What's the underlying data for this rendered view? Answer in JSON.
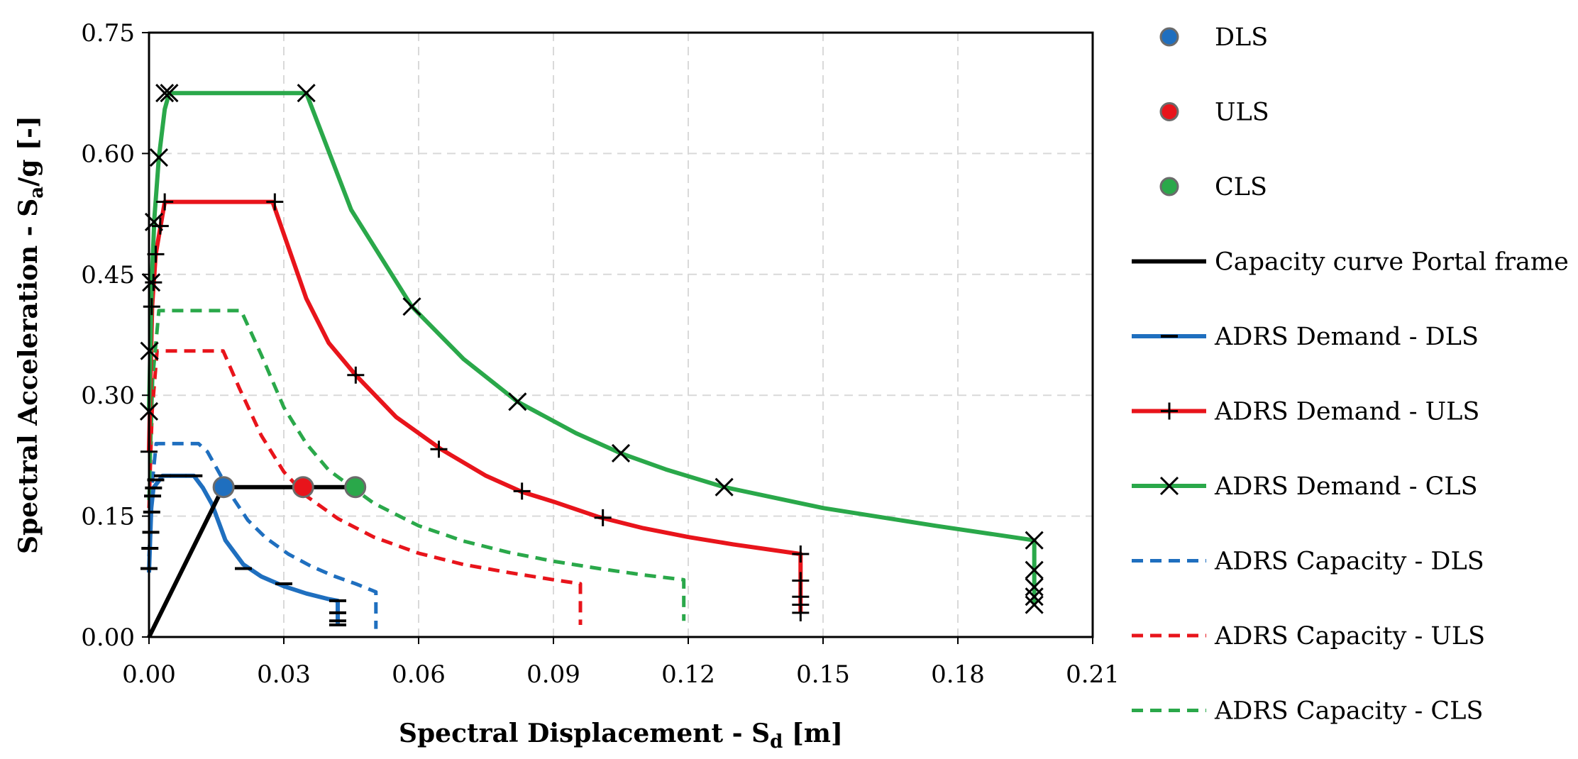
{
  "chart_data": {
    "type": "line",
    "xlabel": {
      "main": "Spectral Displacement - S",
      "sub": "d",
      "unit": " [m]"
    },
    "ylabel": {
      "main": "Spectral Acceleration - S",
      "sub": "a",
      "unit": "/g [-]"
    },
    "xlim": [
      0,
      0.21
    ],
    "ylim": [
      0,
      0.75
    ],
    "xticks": [
      0,
      0.03,
      0.06,
      0.09,
      0.12,
      0.15,
      0.18,
      0.21
    ],
    "yticks": [
      0,
      0.15,
      0.3,
      0.45,
      0.6,
      0.75
    ],
    "xtick_labels": [
      "0.00",
      "0.03",
      "0.06",
      "0.09",
      "0.12",
      "0.15",
      "0.18",
      "0.21"
    ],
    "ytick_labels": [
      "0.00",
      "0.15",
      "0.30",
      "0.45",
      "0.60",
      "0.75"
    ],
    "grid": true,
    "legend_position": "right",
    "legend": [
      {
        "label": "DLS",
        "kind": "dot",
        "color": "#1f6fbf"
      },
      {
        "label": "ULS",
        "kind": "dot",
        "color": "#e8141b"
      },
      {
        "label": "CLS",
        "kind": "dot",
        "color": "#2aa84a"
      },
      {
        "label": "Capacity curve Portal frame",
        "kind": "line",
        "color": "#000000"
      },
      {
        "label": "ADRS Demand - DLS",
        "kind": "line",
        "color": "#1f6fbf",
        "marker": "dash"
      },
      {
        "label": "ADRS Demand - ULS",
        "kind": "line",
        "color": "#e8141b",
        "marker": "plus"
      },
      {
        "label": "ADRS Demand - CLS",
        "kind": "line",
        "color": "#2aa84a",
        "marker": "x"
      },
      {
        "label": "ADRS Capacity - DLS",
        "kind": "dashed",
        "color": "#1f6fbf"
      },
      {
        "label": "ADRS Capacity - ULS",
        "kind": "dashed",
        "color": "#e8141b"
      },
      {
        "label": "ADRS Capacity - CLS",
        "kind": "dashed",
        "color": "#2aa84a"
      }
    ],
    "series": [
      {
        "name": "ADRS Capacity - DLS",
        "style": "dashed",
        "color": "#1f6fbf",
        "x": [
          0,
          0.0007,
          0.0016,
          0.011,
          0.013,
          0.016,
          0.019,
          0.022,
          0.026,
          0.031,
          0.036,
          0.041,
          0.046,
          0.0505,
          0.0505
        ],
        "y": [
          0.1,
          0.19,
          0.24,
          0.24,
          0.23,
          0.2,
          0.17,
          0.145,
          0.123,
          0.103,
          0.088,
          0.076,
          0.066,
          0.056,
          0.01
        ]
      },
      {
        "name": "ADRS Capacity - ULS",
        "style": "dashed",
        "color": "#e8141b",
        "x": [
          0,
          0.0007,
          0.0018,
          0.0165,
          0.02,
          0.025,
          0.03,
          0.035,
          0.042,
          0.05,
          0.06,
          0.07,
          0.08,
          0.09,
          0.096,
          0.096
        ],
        "y": [
          0.16,
          0.28,
          0.355,
          0.355,
          0.31,
          0.25,
          0.205,
          0.175,
          0.147,
          0.124,
          0.104,
          0.09,
          0.08,
          0.071,
          0.066,
          0.015
        ]
      },
      {
        "name": "ADRS Capacity - CLS",
        "style": "dashed",
        "color": "#2aa84a",
        "x": [
          0,
          0.0008,
          0.0022,
          0.0205,
          0.025,
          0.03,
          0.035,
          0.04,
          0.05,
          0.06,
          0.07,
          0.08,
          0.09,
          0.1,
          0.11,
          0.119,
          0.119
        ],
        "y": [
          0.17,
          0.32,
          0.405,
          0.405,
          0.35,
          0.285,
          0.24,
          0.207,
          0.166,
          0.138,
          0.119,
          0.105,
          0.094,
          0.085,
          0.077,
          0.071,
          0.02
        ]
      },
      {
        "name": "ADRS Demand - DLS",
        "style": "solid",
        "color": "#1f6fbf",
        "marker": "dash",
        "x": [
          0,
          0.0005,
          0.001,
          0.003,
          0.01,
          0.012,
          0.014,
          0.017,
          0.021,
          0.025,
          0.03,
          0.035,
          0.04,
          0.042,
          0.042
        ],
        "y": [
          0.08,
          0.16,
          0.185,
          0.2,
          0.2,
          0.185,
          0.165,
          0.12,
          0.09,
          0.075,
          0.063,
          0.054,
          0.047,
          0.045,
          0.015
        ],
        "marker_x": [
          0,
          0.0002,
          0.0004,
          0.0006,
          0.0008,
          0.001,
          0.0015,
          0.003,
          0.0065,
          0.01,
          0.021,
          0.03,
          0.042,
          0.042,
          0.042,
          0.042
        ],
        "marker_y": [
          0.085,
          0.11,
          0.13,
          0.155,
          0.175,
          0.185,
          0.195,
          0.2,
          0.2,
          0.2,
          0.085,
          0.066,
          0.045,
          0.03,
          0.02,
          0.015
        ]
      },
      {
        "name": "ADRS Demand - ULS",
        "style": "solid",
        "color": "#e8141b",
        "marker": "plus",
        "x": [
          0,
          0.0007,
          0.0015,
          0.0035,
          0.0275,
          0.035,
          0.04,
          0.046,
          0.055,
          0.065,
          0.075,
          0.083,
          0.09,
          0.1,
          0.11,
          0.12,
          0.13,
          0.145,
          0.145
        ],
        "y": [
          0.23,
          0.41,
          0.475,
          0.54,
          0.54,
          0.42,
          0.365,
          0.325,
          0.273,
          0.233,
          0.2,
          0.18,
          0.168,
          0.149,
          0.135,
          0.124,
          0.115,
          0.103,
          0.03
        ],
        "marker_x": [
          0,
          0.0006,
          0.001,
          0.0015,
          0.0025,
          0.0035,
          0.028,
          0.046,
          0.0645,
          0.083,
          0.101,
          0.145,
          0.145,
          0.145,
          0.145,
          0.145
        ],
        "marker_y": [
          0.23,
          0.41,
          0.44,
          0.475,
          0.51,
          0.54,
          0.54,
          0.325,
          0.233,
          0.181,
          0.148,
          0.103,
          0.07,
          0.05,
          0.04,
          0.03
        ]
      },
      {
        "name": "ADRS Demand - CLS",
        "style": "solid",
        "color": "#2aa84a",
        "marker": "x",
        "x": [
          0,
          0.0006,
          0.0012,
          0.0022,
          0.0035,
          0.0045,
          0.035,
          0.045,
          0.0585,
          0.07,
          0.082,
          0.095,
          0.105,
          0.115,
          0.128,
          0.15,
          0.175,
          0.197,
          0.197
        ],
        "y": [
          0.28,
          0.44,
          0.52,
          0.595,
          0.655,
          0.675,
          0.675,
          0.53,
          0.41,
          0.345,
          0.292,
          0.253,
          0.228,
          0.208,
          0.186,
          0.16,
          0.138,
          0.12,
          0.04
        ],
        "marker_x": [
          0,
          0.0001,
          0.0005,
          0.0011,
          0.0022,
          0.0035,
          0.0045,
          0.035,
          0.0585,
          0.082,
          0.105,
          0.128,
          0.197,
          0.197,
          0.197,
          0.197,
          0.197
        ],
        "marker_y": [
          0.28,
          0.355,
          0.44,
          0.515,
          0.595,
          0.675,
          0.675,
          0.675,
          0.41,
          0.292,
          0.228,
          0.186,
          0.12,
          0.083,
          0.062,
          0.05,
          0.04
        ]
      },
      {
        "name": "Capacity curve Portal frame",
        "style": "solid",
        "color": "#000000",
        "x": [
          0,
          0.0165,
          0.0465
        ],
        "y": [
          0,
          0.186,
          0.186
        ]
      }
    ],
    "points": [
      {
        "name": "DLS",
        "color": "#1f6fbf",
        "x": 0.0166,
        "y": 0.186
      },
      {
        "name": "ULS",
        "color": "#e8141b",
        "x": 0.0343,
        "y": 0.186
      },
      {
        "name": "CLS",
        "color": "#2aa84a",
        "x": 0.0459,
        "y": 0.186
      }
    ]
  }
}
